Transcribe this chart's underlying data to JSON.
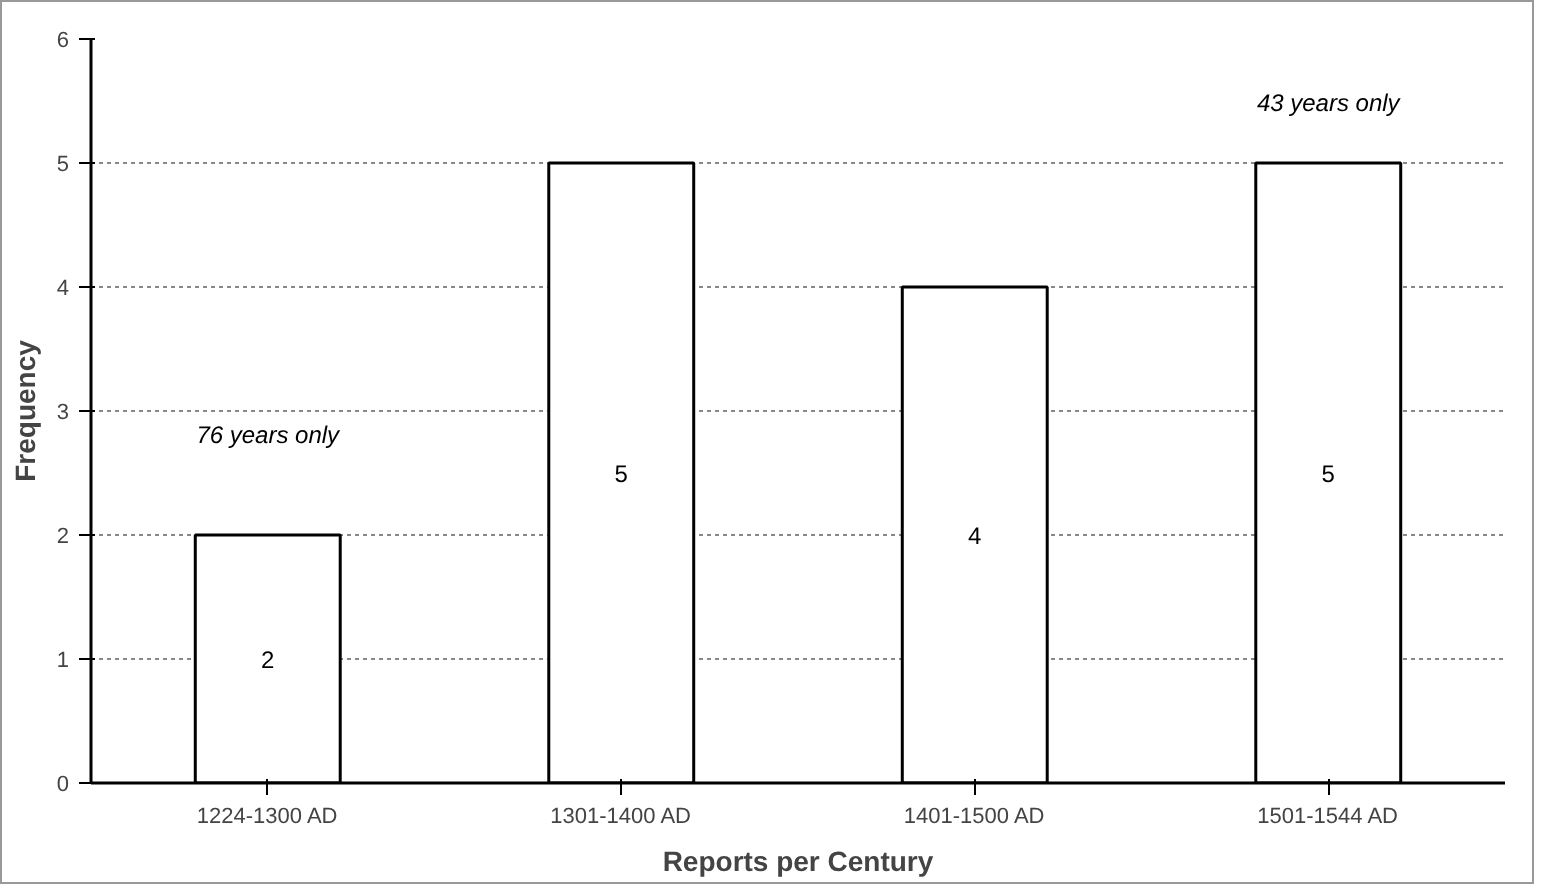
{
  "chart_data": {
    "type": "bar",
    "xlabel": "Reports per Century",
    "ylabel": "Frequency",
    "categories": [
      "1224-1300 AD",
      "1301-1400 AD",
      "1401-1500 AD",
      "1501-1544 AD"
    ],
    "values": [
      2,
      5,
      4,
      5
    ],
    "color": "#ffffff",
    "ylim": [
      0,
      6
    ],
    "yticks": [
      0,
      1,
      2,
      3,
      4,
      5,
      6
    ],
    "grid": "y",
    "data_labels": true,
    "annotations": [
      "76 years only",
      "43 years only"
    ]
  }
}
